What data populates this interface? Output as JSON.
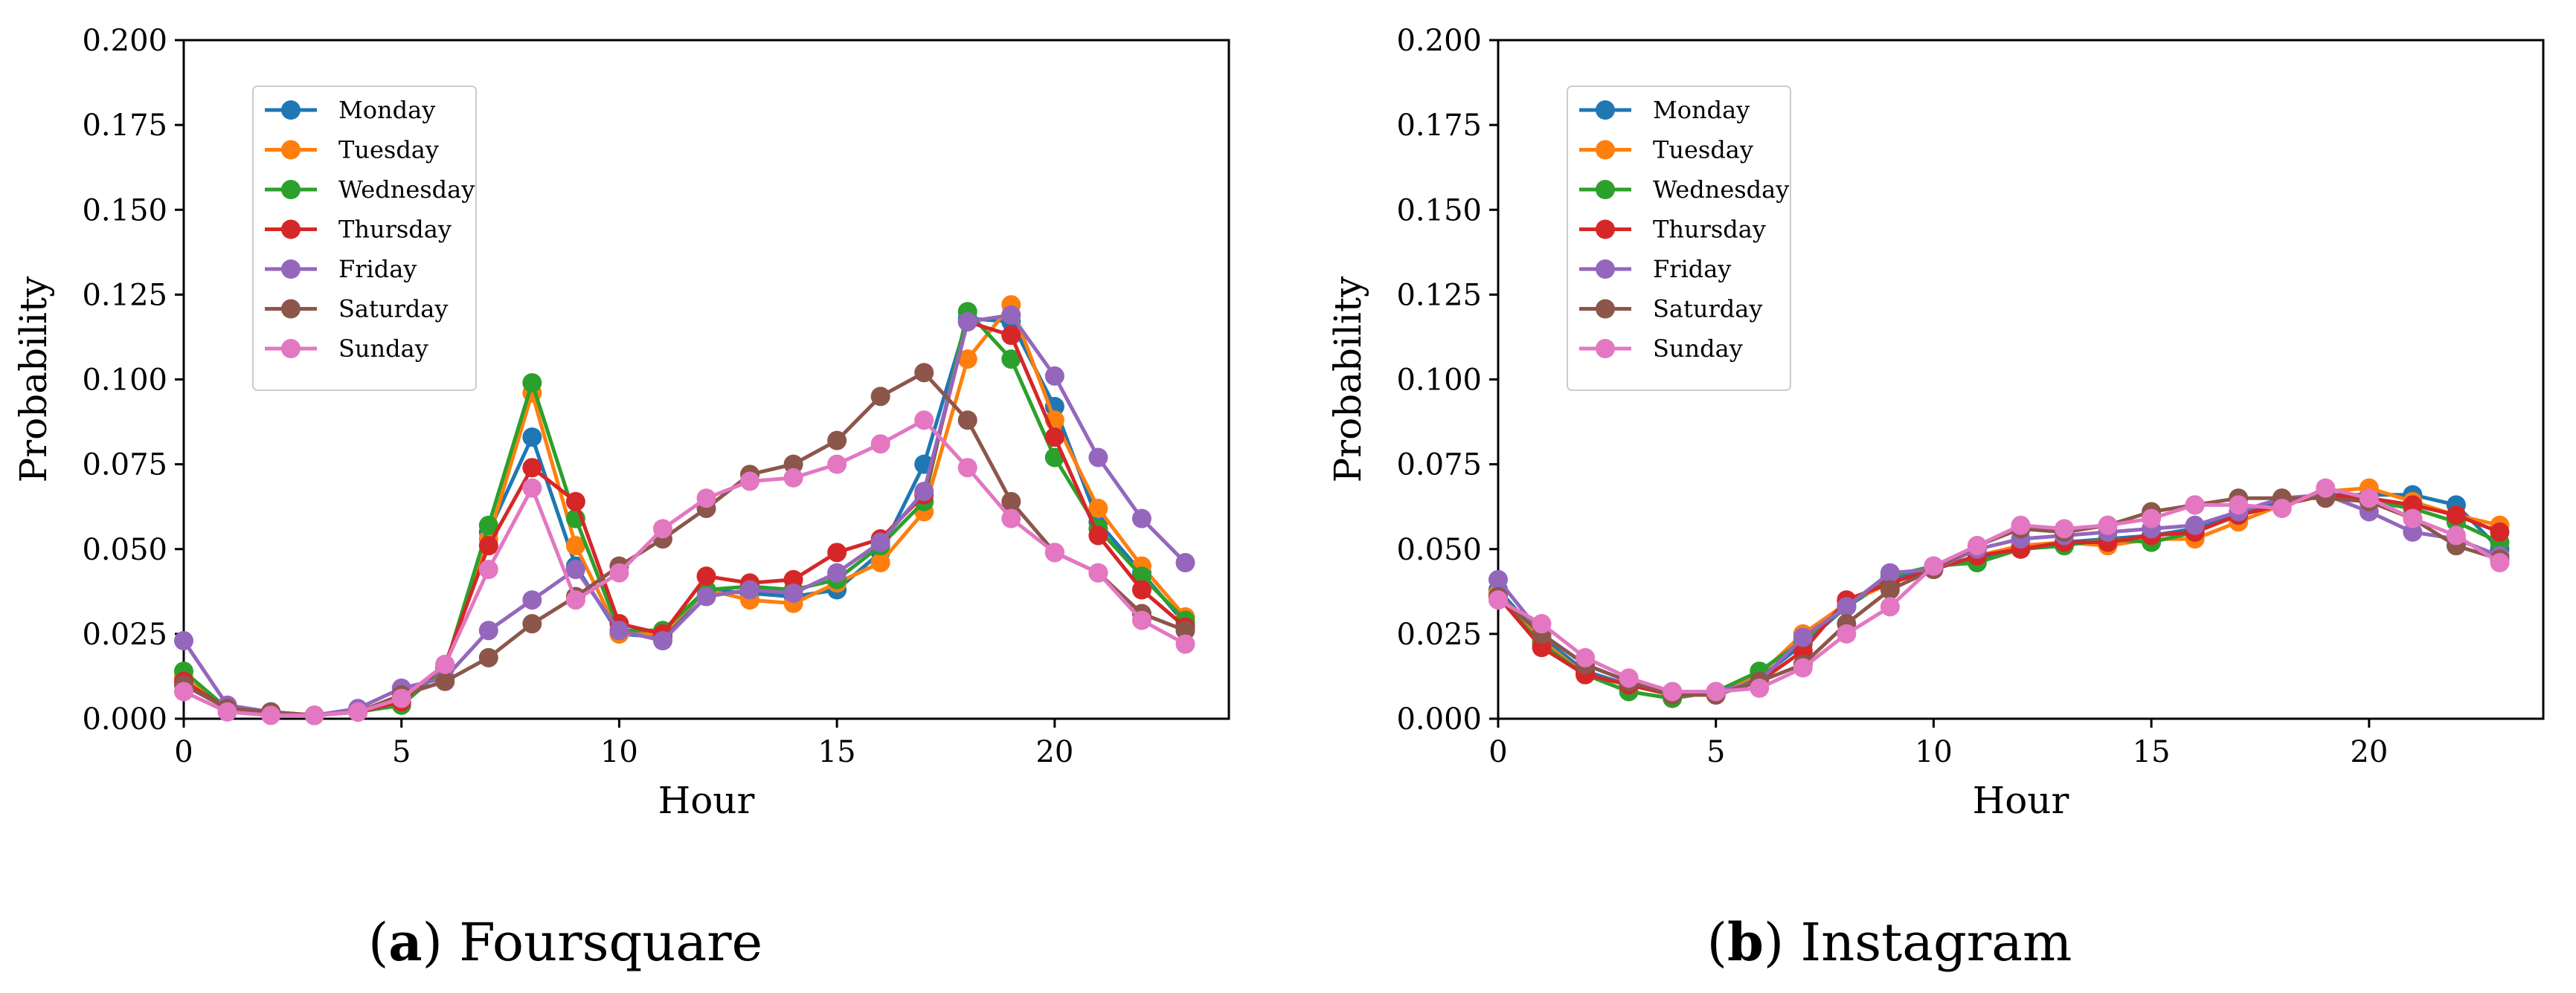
{
  "chart_data": [
    {
      "type": "line",
      "title": "",
      "xlabel": "Hour",
      "ylabel": "Probability",
      "xlim": [
        0,
        24
      ],
      "ylim": [
        0,
        0.2
      ],
      "xticks": [
        0,
        5,
        10,
        15,
        20
      ],
      "yticks": [
        0,
        0.025,
        0.05,
        0.075,
        0.1,
        0.125,
        0.15,
        0.175,
        0.2
      ],
      "ytick_labels": [
        "0.000",
        "0.025",
        "0.050",
        "0.075",
        "0.100",
        "0.125",
        "0.150",
        "0.175",
        "0.200"
      ],
      "grid": false,
      "legend_position": "top-left",
      "caption": {
        "letter": "a",
        "name": "Foursquare"
      },
      "x": [
        0,
        1,
        2,
        3,
        4,
        5,
        6,
        7,
        8,
        9,
        10,
        11,
        12,
        13,
        14,
        15,
        16,
        17,
        18,
        19,
        20,
        21,
        22,
        23
      ],
      "series": [
        {
          "name": "Monday",
          "color": "#1f77b4",
          "values": [
            0.012,
            0.003,
            0.002,
            0.001,
            0.002,
            0.005,
            0.015,
            0.055,
            0.083,
            0.045,
            0.025,
            0.024,
            0.038,
            0.037,
            0.036,
            0.038,
            0.049,
            0.075,
            0.118,
            0.117,
            0.092,
            0.058,
            0.043,
            0.028
          ]
        },
        {
          "name": "Tuesday",
          "color": "#ff7f0e",
          "values": [
            0.012,
            0.003,
            0.002,
            0.001,
            0.002,
            0.005,
            0.015,
            0.053,
            0.096,
            0.051,
            0.025,
            0.025,
            0.038,
            0.035,
            0.034,
            0.04,
            0.046,
            0.061,
            0.106,
            0.122,
            0.088,
            0.062,
            0.045,
            0.03
          ]
        },
        {
          "name": "Wednesday",
          "color": "#2ca02c",
          "values": [
            0.014,
            0.003,
            0.002,
            0.001,
            0.002,
            0.004,
            0.015,
            0.057,
            0.099,
            0.059,
            0.026,
            0.026,
            0.038,
            0.039,
            0.038,
            0.041,
            0.051,
            0.064,
            0.12,
            0.106,
            0.077,
            0.056,
            0.042,
            0.029
          ]
        },
        {
          "name": "Thursday",
          "color": "#d62728",
          "values": [
            0.011,
            0.003,
            0.002,
            0.001,
            0.002,
            0.005,
            0.016,
            0.051,
            0.074,
            0.064,
            0.028,
            0.025,
            0.042,
            0.04,
            0.041,
            0.049,
            0.053,
            0.066,
            0.117,
            0.113,
            0.083,
            0.054,
            0.038,
            0.027
          ]
        },
        {
          "name": "Friday",
          "color": "#9467bd",
          "values": [
            0.023,
            0.004,
            0.002,
            0.001,
            0.003,
            0.009,
            0.012,
            0.026,
            0.035,
            0.044,
            0.026,
            0.023,
            0.036,
            0.038,
            0.037,
            0.043,
            0.052,
            0.067,
            0.117,
            0.119,
            0.101,
            0.077,
            0.059,
            0.046
          ]
        },
        {
          "name": "Saturday",
          "color": "#8c564b",
          "values": [
            0.01,
            0.003,
            0.002,
            0.001,
            0.002,
            0.007,
            0.011,
            0.018,
            0.028,
            0.036,
            0.045,
            0.053,
            0.062,
            0.072,
            0.075,
            0.082,
            0.095,
            0.102,
            0.088,
            0.064,
            0.049,
            0.043,
            0.031,
            0.026
          ]
        },
        {
          "name": "Sunday",
          "color": "#e377c2",
          "values": [
            0.008,
            0.002,
            0.001,
            0.001,
            0.002,
            0.006,
            0.016,
            0.044,
            0.068,
            0.035,
            0.043,
            0.056,
            0.065,
            0.07,
            0.071,
            0.075,
            0.081,
            0.088,
            0.074,
            0.059,
            0.049,
            0.043,
            0.029,
            0.022
          ]
        }
      ]
    },
    {
      "type": "line",
      "title": "",
      "xlabel": "Hour",
      "ylabel": "Probability",
      "xlim": [
        0,
        24
      ],
      "ylim": [
        0,
        0.2
      ],
      "xticks": [
        0,
        5,
        10,
        15,
        20
      ],
      "yticks": [
        0,
        0.025,
        0.05,
        0.075,
        0.1,
        0.125,
        0.15,
        0.175,
        0.2
      ],
      "ytick_labels": [
        "0.000",
        "0.025",
        "0.050",
        "0.075",
        "0.100",
        "0.125",
        "0.150",
        "0.175",
        "0.200"
      ],
      "grid": false,
      "legend_position": "top-left",
      "caption": {
        "letter": "b",
        "name": "Instagram"
      },
      "x": [
        0,
        1,
        2,
        3,
        4,
        5,
        6,
        7,
        8,
        9,
        10,
        11,
        12,
        13,
        14,
        15,
        16,
        17,
        18,
        19,
        20,
        21,
        22,
        23
      ],
      "series": [
        {
          "name": "Monday",
          "color": "#1f77b4",
          "values": [
            0.038,
            0.024,
            0.014,
            0.01,
            0.007,
            0.008,
            0.012,
            0.022,
            0.033,
            0.041,
            0.045,
            0.047,
            0.051,
            0.052,
            0.053,
            0.054,
            0.056,
            0.06,
            0.064,
            0.066,
            0.066,
            0.066,
            0.063,
            0.05
          ]
        },
        {
          "name": "Tuesday",
          "color": "#ff7f0e",
          "values": [
            0.037,
            0.023,
            0.013,
            0.01,
            0.007,
            0.008,
            0.013,
            0.025,
            0.034,
            0.04,
            0.044,
            0.048,
            0.051,
            0.052,
            0.051,
            0.053,
            0.053,
            0.058,
            0.063,
            0.067,
            0.068,
            0.064,
            0.06,
            0.057
          ]
        },
        {
          "name": "Wednesday",
          "color": "#2ca02c",
          "values": [
            0.036,
            0.022,
            0.013,
            0.008,
            0.006,
            0.008,
            0.014,
            0.023,
            0.033,
            0.042,
            0.045,
            0.046,
            0.05,
            0.051,
            0.053,
            0.052,
            0.055,
            0.06,
            0.063,
            0.066,
            0.064,
            0.062,
            0.058,
            0.052
          ]
        },
        {
          "name": "Thursday",
          "color": "#d62728",
          "values": [
            0.036,
            0.021,
            0.013,
            0.01,
            0.007,
            0.007,
            0.011,
            0.02,
            0.035,
            0.04,
            0.044,
            0.048,
            0.05,
            0.052,
            0.052,
            0.054,
            0.055,
            0.06,
            0.063,
            0.066,
            0.065,
            0.063,
            0.06,
            0.055
          ]
        },
        {
          "name": "Friday",
          "color": "#9467bd",
          "values": [
            0.041,
            0.025,
            0.016,
            0.011,
            0.008,
            0.008,
            0.011,
            0.024,
            0.033,
            0.043,
            0.044,
            0.05,
            0.053,
            0.054,
            0.055,
            0.056,
            0.057,
            0.061,
            0.065,
            0.066,
            0.061,
            0.055,
            0.053,
            0.048
          ]
        },
        {
          "name": "Saturday",
          "color": "#8c564b",
          "values": [
            0.036,
            0.025,
            0.016,
            0.011,
            0.007,
            0.007,
            0.011,
            0.016,
            0.028,
            0.038,
            0.044,
            0.051,
            0.056,
            0.055,
            0.057,
            0.061,
            0.063,
            0.065,
            0.065,
            0.065,
            0.064,
            0.059,
            0.051,
            0.047
          ]
        },
        {
          "name": "Sunday",
          "color": "#e377c2",
          "values": [
            0.035,
            0.028,
            0.018,
            0.012,
            0.008,
            0.008,
            0.009,
            0.015,
            0.025,
            0.033,
            0.045,
            0.051,
            0.057,
            0.056,
            0.057,
            0.059,
            0.063,
            0.063,
            0.062,
            0.068,
            0.065,
            0.059,
            0.054,
            0.046
          ]
        }
      ]
    }
  ]
}
